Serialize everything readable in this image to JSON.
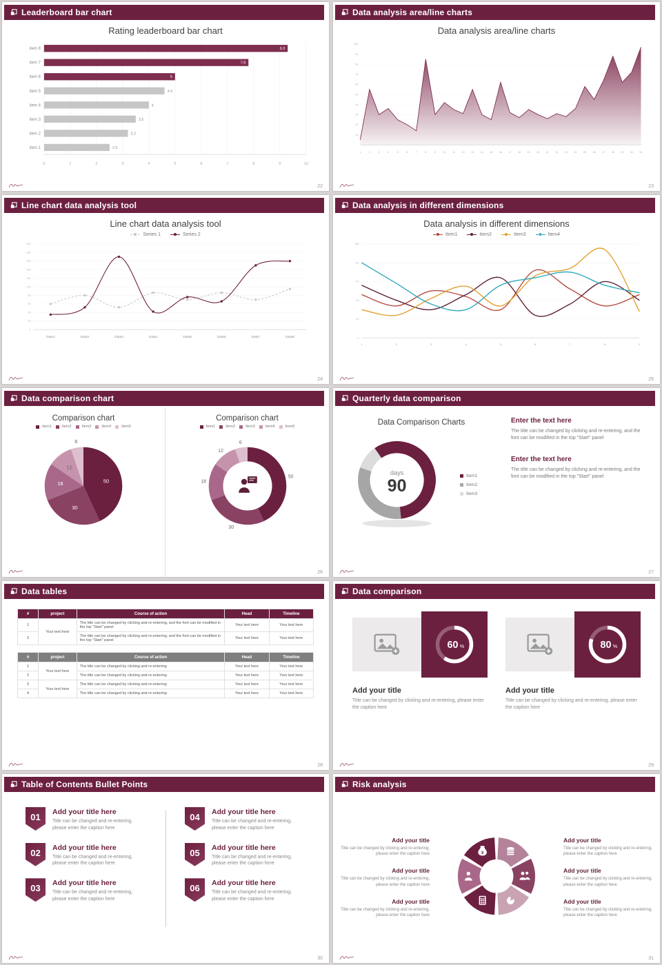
{
  "colors": {
    "page_bg": "#d8d4d3",
    "header": "#6c2040",
    "maroon": "#6c2040",
    "chart_maroon": "#7e2e4f",
    "bar_gray": "#c6c6c6"
  },
  "slides": [
    {
      "header": "Leaderboard bar chart",
      "page": "22",
      "title": "Rating leaderboard bar chart",
      "chart": {
        "type": "bar",
        "categories": [
          "item 1",
          "item 2",
          "item 3",
          "item 4",
          "item 5",
          "item 6",
          "item 7",
          "item 8"
        ],
        "values": [
          2.5,
          3.2,
          3.5,
          4,
          4.6,
          5,
          7.8,
          9.3
        ],
        "bar_colors": [
          "g",
          "g",
          "g",
          "g",
          "g",
          "m",
          "m",
          "m"
        ],
        "xmax": 10,
        "maroon": "#7e2e4f",
        "gray": "#c6c6c6"
      }
    },
    {
      "header": "Data analysis area/line charts",
      "page": "23",
      "title": "Data analysis area/line charts",
      "chart": {
        "type": "area",
        "values": [
          5,
          55,
          30,
          36,
          25,
          20,
          14,
          85,
          30,
          42,
          35,
          31,
          55,
          30,
          25,
          62,
          32,
          27,
          35,
          30,
          26,
          31,
          28,
          36,
          58,
          45,
          64,
          88,
          62,
          72,
          97
        ],
        "ymax": 100,
        "color": "#7e2e4f"
      }
    },
    {
      "header": "Line chart data analysis tool",
      "page": "24",
      "title": "Line chart data analysis tool",
      "legend": [
        "Series 1",
        "Series 2"
      ],
      "chart": {
        "type": "line",
        "categories": [
          "Data1",
          "Data2",
          "Data3",
          "Data4",
          "Data5",
          "Data6",
          "Data7",
          "Data8"
        ],
        "ymax": 200,
        "series": [
          {
            "name": "Series 1",
            "color": "#c8c8c8",
            "dash": true,
            "values": [
              60,
              80,
              52,
              86,
              70,
              86,
              70,
              95
            ]
          },
          {
            "name": "Series 2",
            "color": "#6c2040",
            "dash": false,
            "values": [
              35,
              52,
              170,
              42,
              76,
              66,
              150,
              160
            ]
          }
        ]
      }
    },
    {
      "header": "Data analysis in different dimensions",
      "page": "25",
      "title": "Data analysis in different dimensions",
      "legend": [
        "Item1",
        "Item2",
        "Item3",
        "Item4"
      ],
      "chart": {
        "type": "line",
        "ymax": 100,
        "series": [
          {
            "name": "Item1",
            "color": "#b5493f",
            "values": [
              46,
              34,
              50,
              44,
              30,
              72,
              52,
              34,
              46
            ]
          },
          {
            "name": "Item2",
            "color": "#5c1f35",
            "values": [
              56,
              40,
              30,
              46,
              64,
              24,
              36,
              60,
              40
            ]
          },
          {
            "name": "Item3",
            "color": "#e3a02f",
            "values": [
              30,
              24,
              42,
              55,
              34,
              66,
              74,
              94,
              28
            ]
          },
          {
            "name": "Item4",
            "color": "#2fa8bc",
            "values": [
              80,
              58,
              36,
              30,
              56,
              64,
              70,
              56,
              48
            ]
          }
        ]
      }
    },
    {
      "header": "Data comparison chart",
      "page": "26",
      "legend": [
        "Item1",
        "Item2",
        "Item3",
        "Item4",
        "Item5"
      ],
      "panels": [
        {
          "title": "Comparison chart",
          "type": "pie",
          "values": [
            50,
            30,
            18,
            12,
            6
          ],
          "colors": [
            "#6c2040",
            "#8a4263",
            "#a9688a",
            "#c693ad",
            "#ddbfcd"
          ]
        },
        {
          "title": "Comparison chart",
          "type": "donut",
          "values": [
            50,
            30,
            18,
            12,
            6
          ],
          "colors": [
            "#6c2040",
            "#8a4263",
            "#a9688a",
            "#c693ad",
            "#ddbfcd"
          ],
          "icon_color": "#5c2038"
        }
      ]
    },
    {
      "header": "Quarterly data comparison",
      "page": "27",
      "chart_title": "Data Comparison Charts",
      "legend": [
        "Item1",
        "Item2",
        "Item3"
      ],
      "donut": {
        "type": "donut",
        "values": [
          58,
          32,
          10
        ],
        "colors": [
          "#6c2040",
          "#a6a6a6",
          "#dcdcdc"
        ],
        "center_top": "days",
        "center_value": "90"
      },
      "blocks": [
        {
          "heading": "Enter the text here",
          "body": "The title can be changed by clicking and re-entering, and the font can be modified in the top \"Start\" panel"
        },
        {
          "heading": "Enter the text here",
          "body": "The title can be changed by clicking and re-entering, and the font can be modified in the top \"Start\" panel"
        }
      ]
    },
    {
      "header": "Data tables",
      "page": "28",
      "columns": [
        "#",
        "project",
        "Course of action",
        "Head",
        "Timeline"
      ],
      "project": "Your text here",
      "t1rows": [
        {
          "num": "1",
          "action": "The title can be changed by clicking and re-entering, and the font can be modified in the top \"Start\" panel",
          "head": "Your text here",
          "timeline": "Your text here"
        },
        {
          "num": "2",
          "action": "The title can be changed by clicking and re-entering, and the font can be modified in the top \"Start\" panel",
          "head": "Your text here",
          "timeline": "Your text here"
        }
      ],
      "t2rows": [
        {
          "num": "1",
          "action": "The title can be changed by clicking and re-entering",
          "head": "Your text here",
          "timeline": "Your text here"
        },
        {
          "num": "2",
          "action": "The title can be changed by clicking and re-entering",
          "head": "Your text here",
          "timeline": "Your text here"
        },
        {
          "num": "3",
          "action": "The title can be changed by clicking and re-entering",
          "head": "Your text here",
          "timeline": "Your text here"
        },
        {
          "num": "4",
          "action": "The title can be changed by clicking and re-entering",
          "head": "Your text here",
          "timeline": "Your text here"
        }
      ]
    },
    {
      "header": "Data comparison",
      "page": "29",
      "cards": [
        {
          "percent": 60,
          "title": "Add your title",
          "caption": "Title can be changed by clicking and re-entering, please enter the caption here"
        },
        {
          "percent": 80,
          "title": "Add your title",
          "caption": "Title can be changed by clicking and re-entering, please enter the caption here"
        }
      ]
    },
    {
      "header": "Table of Contents Bullet Points",
      "page": "30",
      "items": [
        {
          "num": "01",
          "title": "Add your title here",
          "caption": "Title can be changed and re-entering, please enter the caption here"
        },
        {
          "num": "02",
          "title": "Add your title here",
          "caption": "Title can be changed and re-entering, please enter the caption here"
        },
        {
          "num": "03",
          "title": "Add your title here",
          "caption": "Title can be changed and re-entering, please enter the caption here"
        },
        {
          "num": "04",
          "title": "Add your title here",
          "caption": "Title can be changed and re-entering, please enter the caption here"
        },
        {
          "num": "05",
          "title": "Add your title here",
          "caption": "Title can be changed and re-entering, please enter the caption here"
        },
        {
          "num": "06",
          "title": "Add your title here",
          "caption": "Title can be changed and re-entering, please enter the caption here"
        }
      ]
    },
    {
      "header": "Risk analysis",
      "page": "31",
      "wheel": {
        "petals": [
          {
            "icon": "money-bag",
            "color": "#6c2040"
          },
          {
            "icon": "coins",
            "color": "#b4839a"
          },
          {
            "icon": "people",
            "color": "#8a4263"
          },
          {
            "icon": "pie",
            "color": "#c9a3b4"
          },
          {
            "icon": "keypad",
            "color": "#6c2040"
          },
          {
            "icon": "person",
            "color": "#a9688a"
          }
        ]
      },
      "left": [
        {
          "title": "Add your title",
          "caption": "Title can be changed by clicking and re-entering, please enter the caption here"
        },
        {
          "title": "Add your title",
          "caption": "Title can be changed by clicking and re-entering, please enter the caption here"
        },
        {
          "title": "Add your title",
          "caption": "Title can be changed by clicking and re-entering, please enter the caption here"
        }
      ],
      "right": [
        {
          "title": "Add your title",
          "caption": "Title can be changed by clicking and re-entering, please enter the caption here"
        },
        {
          "title": "Add your title",
          "caption": "Title can be changed by clicking and re-entering, please enter the caption here"
        },
        {
          "title": "Add your title",
          "caption": "Title can be changed by clicking and re-entering, please enter the caption here"
        }
      ]
    }
  ]
}
